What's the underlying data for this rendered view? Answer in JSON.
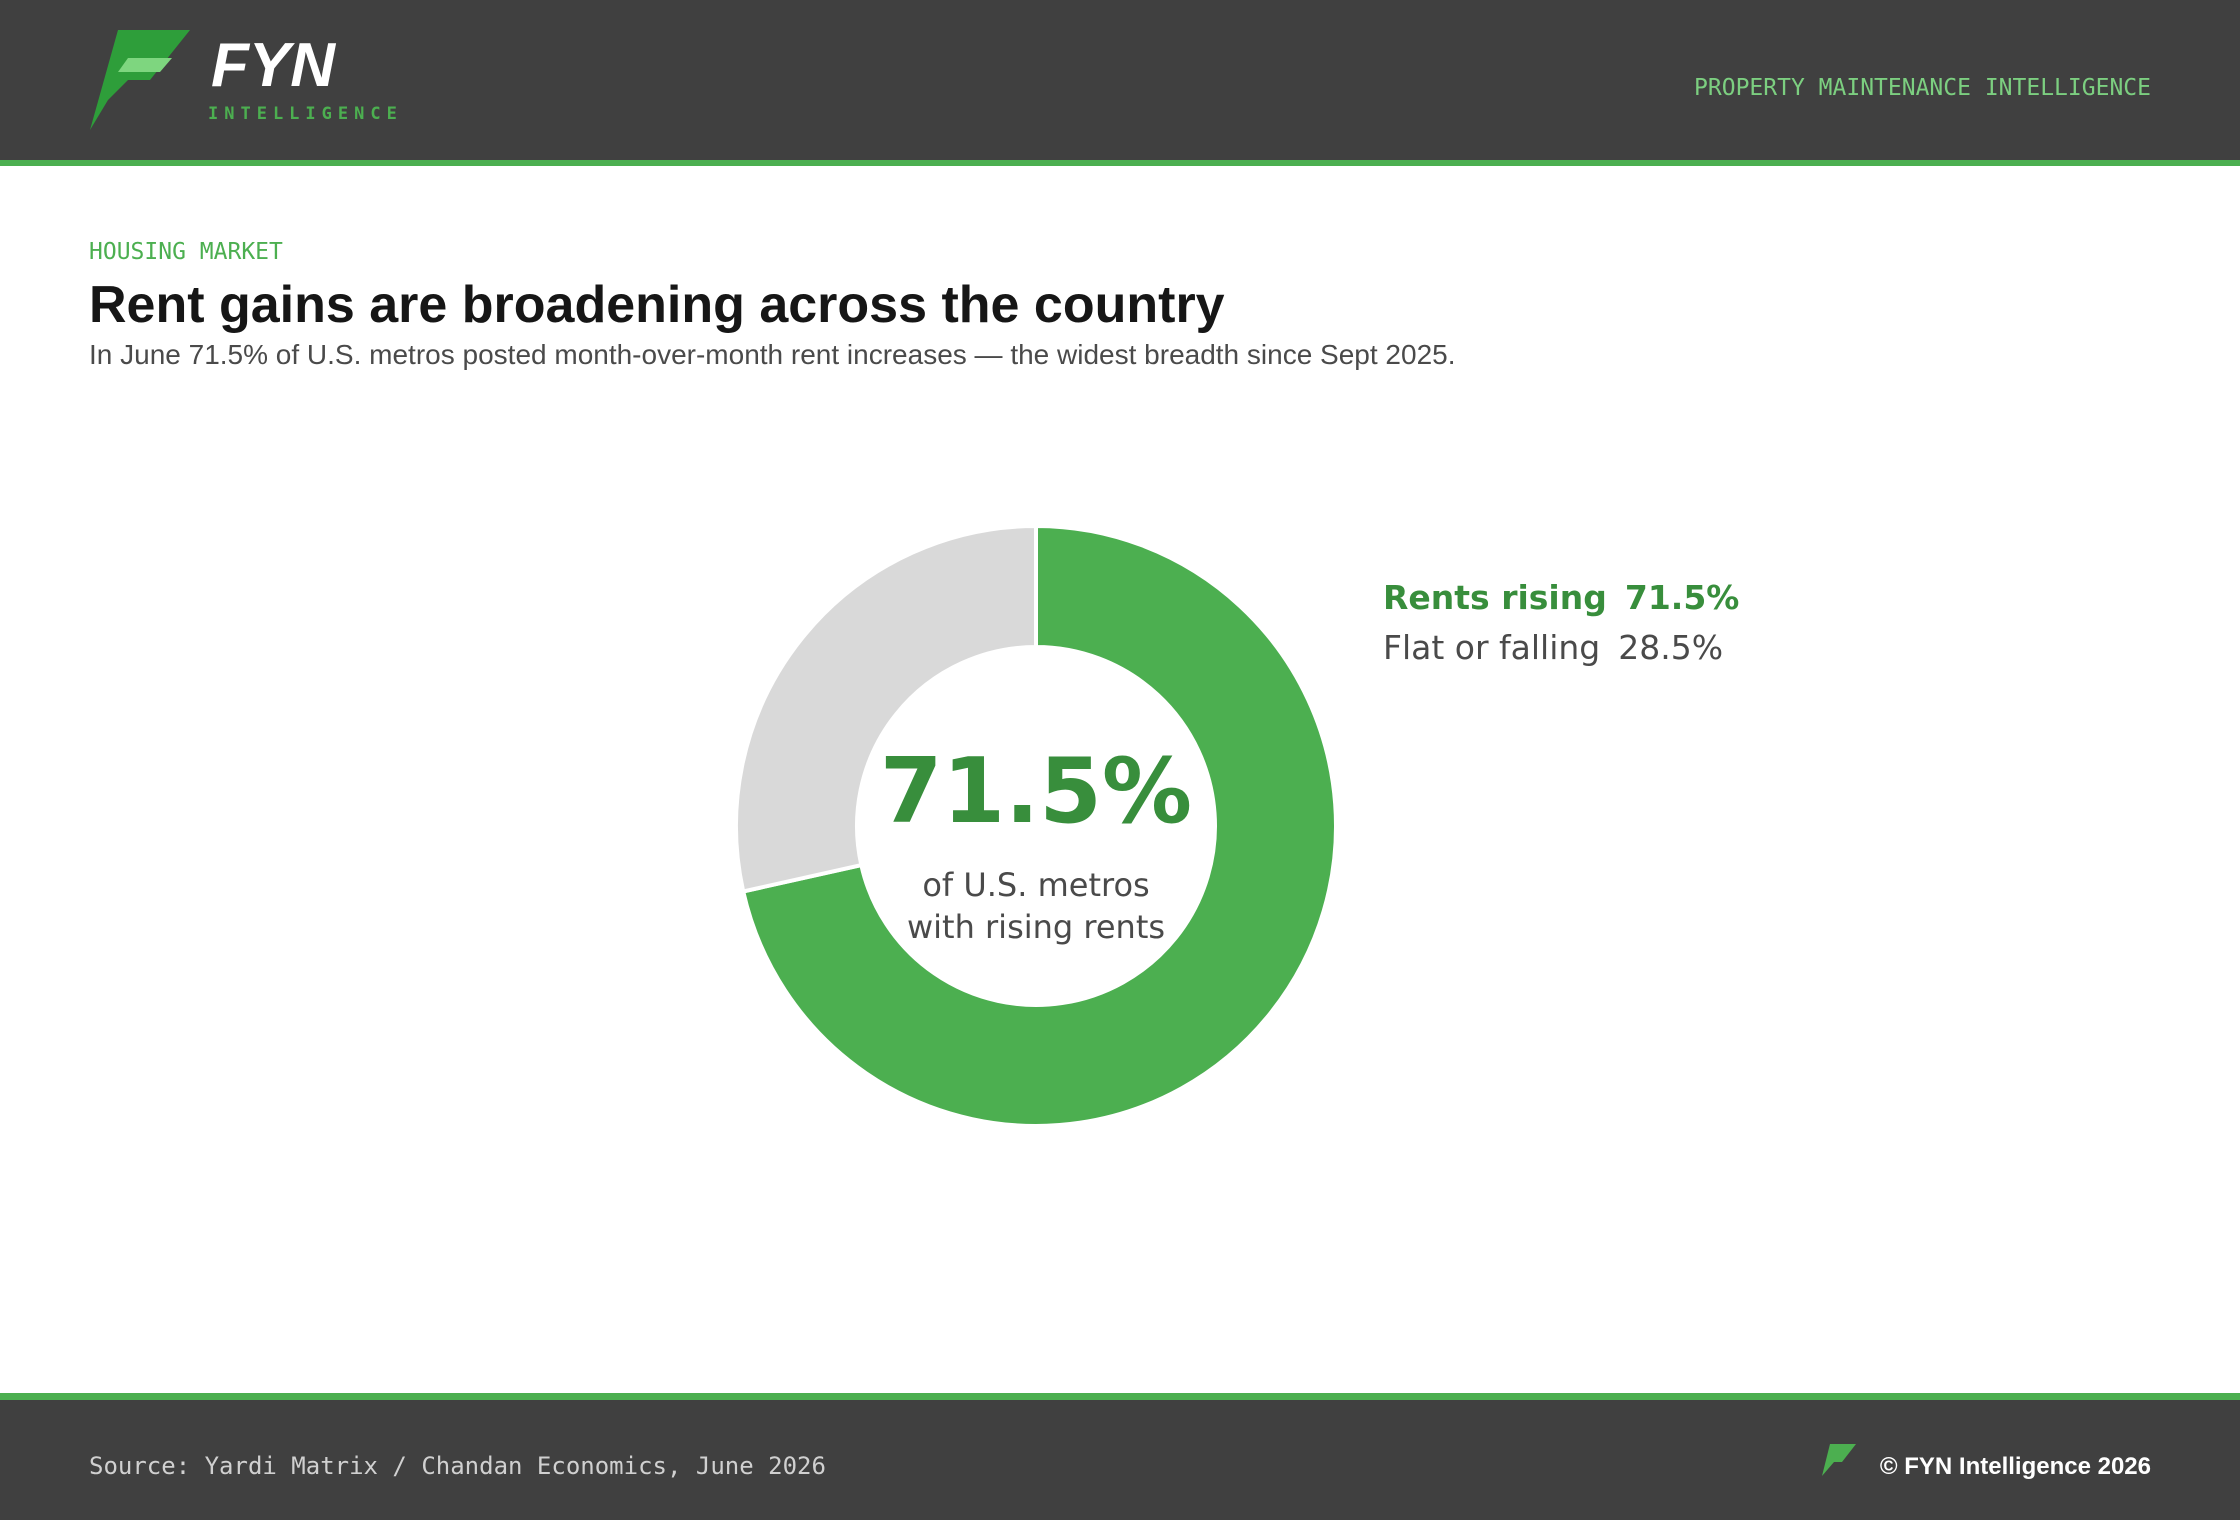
{
  "header": {
    "logo_text": "FYN",
    "logo_subtext": "INTELLIGENCE",
    "tagline": "PROPERTY MAINTENANCE INTELLIGENCE"
  },
  "chart_data": {
    "type": "pie",
    "kicker": "HOUSING MARKET",
    "title": "Rent gains are broadening across the country",
    "subtitle": "In June 71.5% of U.S. metros posted month-over-month rent increases — the widest breadth since Sept 2025.",
    "categories": [
      "Rents rising",
      "Flat or falling"
    ],
    "values": [
      71.5,
      28.5
    ],
    "value_labels": [
      "71.5%",
      "28.5%"
    ],
    "colors": [
      "#4caf50",
      "#d9d9d9"
    ],
    "donut": true,
    "center_label_lines": [
      "of U.S. metros",
      "with rising rents"
    ]
  },
  "footer": {
    "source": "Source: Yardi Matrix / Chandan Economics, June 2026",
    "copyright": "© FYN Intelligence 2026"
  }
}
